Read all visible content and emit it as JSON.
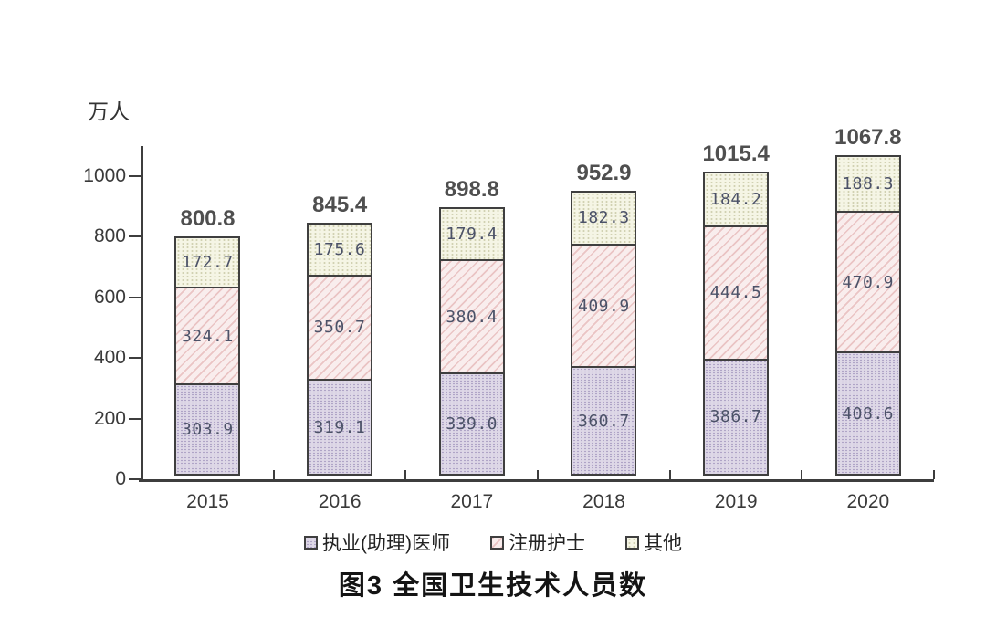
{
  "chart_data": {
    "type": "bar",
    "stacked": true,
    "title": "图3 全国卫生技术人员数",
    "unit_label": "万人",
    "categories": [
      "2015",
      "2016",
      "2017",
      "2018",
      "2019",
      "2020"
    ],
    "series": [
      {
        "name": "执业(助理)医师",
        "values": [
          303.9,
          319.1,
          339.0,
          360.7,
          386.7,
          408.6
        ]
      },
      {
        "name": "注册护士",
        "values": [
          324.1,
          350.7,
          380.4,
          409.9,
          444.5,
          470.9
        ]
      },
      {
        "name": "其他",
        "values": [
          172.7,
          175.6,
          179.4,
          182.3,
          184.2,
          188.3
        ]
      }
    ],
    "totals": [
      800.8,
      845.4,
      898.8,
      952.9,
      1015.4,
      1067.8
    ],
    "y_axis": {
      "ticks": [
        0,
        200,
        400,
        600,
        800,
        1000
      ],
      "label": "万人",
      "ylim": [
        0,
        1100
      ]
    },
    "xlabel": "",
    "ylabel": "万人",
    "grid": false,
    "legend_position": "bottom",
    "colors": {
      "physician_fill": "#ded8e7",
      "physician_dot": "#a89cc2",
      "nurse_fill": "#f9eded",
      "nurse_stripe": "#eac4c4",
      "other_fill": "#f5f5e5",
      "other_dot": "#c9c9a8",
      "segment_border": "#3f3f3f",
      "axis": "#3d3d3d",
      "total_label": "#4f4f4f",
      "segment_label": "#4c5268",
      "title": "#141414"
    }
  }
}
